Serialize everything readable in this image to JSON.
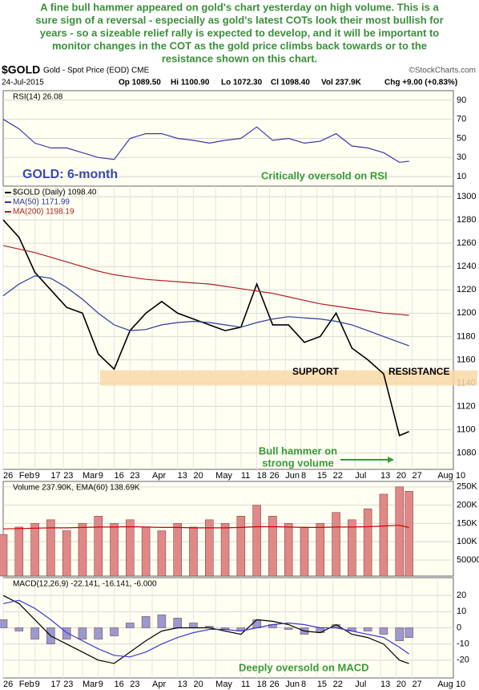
{
  "intro": [
    "A fine bull hammer appeared on gold's chart yesterday on high volume. This is a",
    "sure sign of a reversal - especially as gold's latest COTs look their most bullish for",
    "years - so a sizeable relief rally is expected to develop, and it will be important to",
    "monitor changes in the COT as the gold price climbs back towards or to the",
    "resistance shown on this chart."
  ],
  "header": {
    "symbol": "$GOLD",
    "name": "Gold - Spot Price (EOD) CME",
    "source": "©StockCharts.com",
    "date": "24-Jul-2015",
    "open": "Op 1089.50",
    "high": "Hi 1100.90",
    "low": "Lo 1072.30",
    "close": "Cl 1098.40",
    "volume": "Vol 237.9K",
    "change": "Chg +9.00 (+0.83%)"
  },
  "chart_data": [
    {
      "type": "line",
      "title": "RSI(14) 26.08",
      "x": [
        0,
        5,
        10,
        15,
        20,
        25,
        30,
        35,
        40,
        45,
        50,
        55,
        60,
        65,
        70,
        75,
        80,
        85,
        90,
        95,
        100,
        105,
        110,
        115,
        120,
        125,
        128
      ],
      "xlim": [
        0,
        142
      ],
      "ylim": [
        0,
        100
      ],
      "yticks": [
        10,
        30,
        50,
        70,
        90
      ],
      "grid": true,
      "series": [
        {
          "color": "#3a3aa8",
          "values": [
            70,
            60,
            45,
            40,
            40,
            35,
            30,
            28,
            50,
            55,
            55,
            50,
            48,
            45,
            48,
            50,
            62,
            48,
            50,
            45,
            47,
            55,
            42,
            40,
            35,
            25,
            26.08
          ]
        }
      ],
      "annotations": [
        "GOLD: 6-month",
        "Critically oversold on RSI"
      ]
    },
    {
      "type": "line",
      "x": [
        0,
        5,
        10,
        15,
        20,
        25,
        30,
        35,
        40,
        45,
        50,
        55,
        60,
        65,
        70,
        75,
        80,
        85,
        90,
        95,
        100,
        105,
        110,
        115,
        120,
        125,
        128
      ],
      "xlim": [
        0,
        142
      ],
      "ylim": [
        1066,
        1309
      ],
      "yticks": [
        1080,
        1100,
        1120,
        1140,
        1160,
        1180,
        1200,
        1220,
        1240,
        1260,
        1280,
        1300
      ],
      "grid": true,
      "xticks": [
        {
          "value": 0,
          "label": "26"
        },
        {
          "value": 5,
          "label": "Feb"
        },
        {
          "value": 10,
          "label": "9"
        },
        {
          "value": 15,
          "label": "17"
        },
        {
          "value": 19,
          "label": "23"
        },
        {
          "value": 25,
          "label": "Mar"
        },
        {
          "value": 30,
          "label": "9"
        },
        {
          "value": 35,
          "label": "16"
        },
        {
          "value": 40,
          "label": "23"
        },
        {
          "value": 47,
          "label": "Apr"
        },
        {
          "value": 55,
          "label": "13"
        },
        {
          "value": 60,
          "label": "20"
        },
        {
          "value": 67,
          "label": "May"
        },
        {
          "value": 75,
          "label": "11"
        },
        {
          "value": 80,
          "label": "18"
        },
        {
          "value": 84,
          "label": "26"
        },
        {
          "value": 89,
          "label": "Jun"
        },
        {
          "value": 94,
          "label": "8"
        },
        {
          "value": 99,
          "label": "15"
        },
        {
          "value": 104,
          "label": "22"
        },
        {
          "value": 111,
          "label": "Jul"
        },
        {
          "value": 119,
          "label": "13"
        },
        {
          "value": 124,
          "label": "20"
        },
        {
          "value": 129,
          "label": "27"
        },
        {
          "value": 137,
          "label": "Aug 10"
        }
      ],
      "series": [
        {
          "name": "$GOLD (Daily) 1098.40",
          "color": "#000000",
          "values": [
            1280,
            1265,
            1235,
            1220,
            1205,
            1200,
            1165,
            1152,
            1185,
            1200,
            1210,
            1200,
            1195,
            1190,
            1185,
            1188,
            1225,
            1190,
            1190,
            1175,
            1180,
            1200,
            1170,
            1160,
            1148,
            1095,
            1098.4
          ]
        },
        {
          "name": "MA(50) 1171.99",
          "color": "#2a3a9a",
          "values": [
            1215,
            1225,
            1232,
            1230,
            1222,
            1212,
            1200,
            1190,
            1185,
            1186,
            1190,
            1192,
            1193,
            1192,
            1190,
            1188,
            1192,
            1195,
            1197,
            1196,
            1195,
            1193,
            1190,
            1185,
            1180,
            1175,
            1171.99
          ]
        },
        {
          "name": "MA(200) 1198.19",
          "color": "#b02020",
          "values": [
            1258,
            1255,
            1252,
            1248,
            1244,
            1240,
            1236,
            1233,
            1231,
            1229,
            1228,
            1227,
            1226,
            1225,
            1223,
            1221,
            1219,
            1217,
            1214,
            1211,
            1208,
            1206,
            1204,
            1202,
            1200,
            1199,
            1198.19
          ]
        }
      ],
      "support_band": [
        1138,
        1151
      ],
      "annotations": [
        "SUPPORT",
        "RESISTANCE",
        "Bull hammer on",
        "strong volume"
      ]
    },
    {
      "type": "bar",
      "title": "Volume 237.90K, EMA(60) 138.69K",
      "x": [
        0,
        5,
        10,
        15,
        20,
        25,
        30,
        35,
        40,
        45,
        50,
        55,
        60,
        65,
        70,
        75,
        80,
        85,
        90,
        95,
        100,
        105,
        110,
        115,
        120,
        125,
        128
      ],
      "xlim": [
        0,
        142
      ],
      "ylim": [
        6000,
        265000
      ],
      "yticks": [
        50000,
        {
          "value": 100000,
          "label": "100K"
        },
        {
          "value": 150000,
          "label": "150K"
        },
        {
          "value": 200000,
          "label": "200K"
        },
        {
          "value": 250000,
          "label": "250K"
        }
      ],
      "grid": true,
      "series": [
        {
          "color": "#e08888",
          "values": [
            120000,
            140000,
            150000,
            160000,
            130000,
            150000,
            170000,
            150000,
            160000,
            140000,
            130000,
            150000,
            140000,
            160000,
            150000,
            170000,
            200000,
            170000,
            150000,
            140000,
            150000,
            180000,
            160000,
            190000,
            230000,
            250000,
            237900
          ]
        },
        {
          "type": "line",
          "color": "#cc0000",
          "values": [
            135000,
            136000,
            137000,
            138000,
            138000,
            139000,
            140000,
            140000,
            141000,
            140000,
            139000,
            139000,
            138000,
            138000,
            138000,
            139000,
            141000,
            141000,
            140000,
            139000,
            139000,
            140000,
            140000,
            141000,
            143000,
            145000,
            138690
          ]
        }
      ]
    },
    {
      "type": "line",
      "title": "MACD(12,26,9) -22.141, -16.141, -6.000",
      "x": [
        0,
        5,
        10,
        15,
        20,
        25,
        30,
        35,
        40,
        45,
        50,
        55,
        60,
        65,
        70,
        75,
        80,
        85,
        90,
        95,
        100,
        105,
        110,
        115,
        120,
        125,
        128
      ],
      "xlim": [
        0,
        142
      ],
      "ylim": [
        -31,
        31
      ],
      "yticks": [
        -20,
        -10,
        0,
        10,
        20
      ],
      "grid": true,
      "xticks": [
        {
          "value": 0,
          "label": "26"
        },
        {
          "value": 5,
          "label": "Feb"
        },
        {
          "value": 10,
          "label": "9"
        },
        {
          "value": 15,
          "label": "17"
        },
        {
          "value": 19,
          "label": "23"
        },
        {
          "value": 25,
          "label": "Mar"
        },
        {
          "value": 30,
          "label": "9"
        },
        {
          "value": 35,
          "label": "16"
        },
        {
          "value": 40,
          "label": "23"
        },
        {
          "value": 47,
          "label": "Apr"
        },
        {
          "value": 55,
          "label": "13"
        },
        {
          "value": 60,
          "label": "20"
        },
        {
          "value": 67,
          "label": "May"
        },
        {
          "value": 75,
          "label": "11"
        },
        {
          "value": 80,
          "label": "18"
        },
        {
          "value": 84,
          "label": "26"
        },
        {
          "value": 89,
          "label": "Jun"
        },
        {
          "value": 94,
          "label": "8"
        },
        {
          "value": 99,
          "label": "15"
        },
        {
          "value": 104,
          "label": "22"
        },
        {
          "value": 111,
          "label": "Jul"
        },
        {
          "value": 119,
          "label": "13"
        },
        {
          "value": 124,
          "label": "20"
        },
        {
          "value": 129,
          "label": "27"
        },
        {
          "value": 137,
          "label": "Aug 10"
        }
      ],
      "series": [
        {
          "type": "bar",
          "color": "#9a9ad0",
          "values": [
            5,
            -2,
            -7,
            -10,
            -7,
            -7,
            -7,
            -5,
            3,
            7,
            8,
            6,
            3,
            1,
            -1,
            -2,
            5,
            2,
            -1,
            -4,
            -3,
            2,
            -2,
            -2,
            -4,
            -8,
            -6
          ]
        },
        {
          "color": "#000000",
          "values": [
            20,
            15,
            5,
            -5,
            -10,
            -15,
            -20,
            -22,
            -15,
            -8,
            -2,
            0,
            0,
            0,
            -2,
            -4,
            5,
            4,
            2,
            -2,
            -3,
            2,
            -4,
            -6,
            -10,
            -20,
            -22.141
          ]
        },
        {
          "color": "#3a3ad0",
          "values": [
            15,
            17,
            12,
            5,
            -3,
            -8,
            -13,
            -17,
            -18,
            -15,
            -10,
            -6,
            -3,
            -1,
            -1,
            -2,
            0,
            2,
            3,
            2,
            0,
            0,
            -2,
            -4,
            -6,
            -12,
            -16.141
          ]
        }
      ],
      "annotations": [
        "Deeply oversold on MACD"
      ]
    }
  ]
}
